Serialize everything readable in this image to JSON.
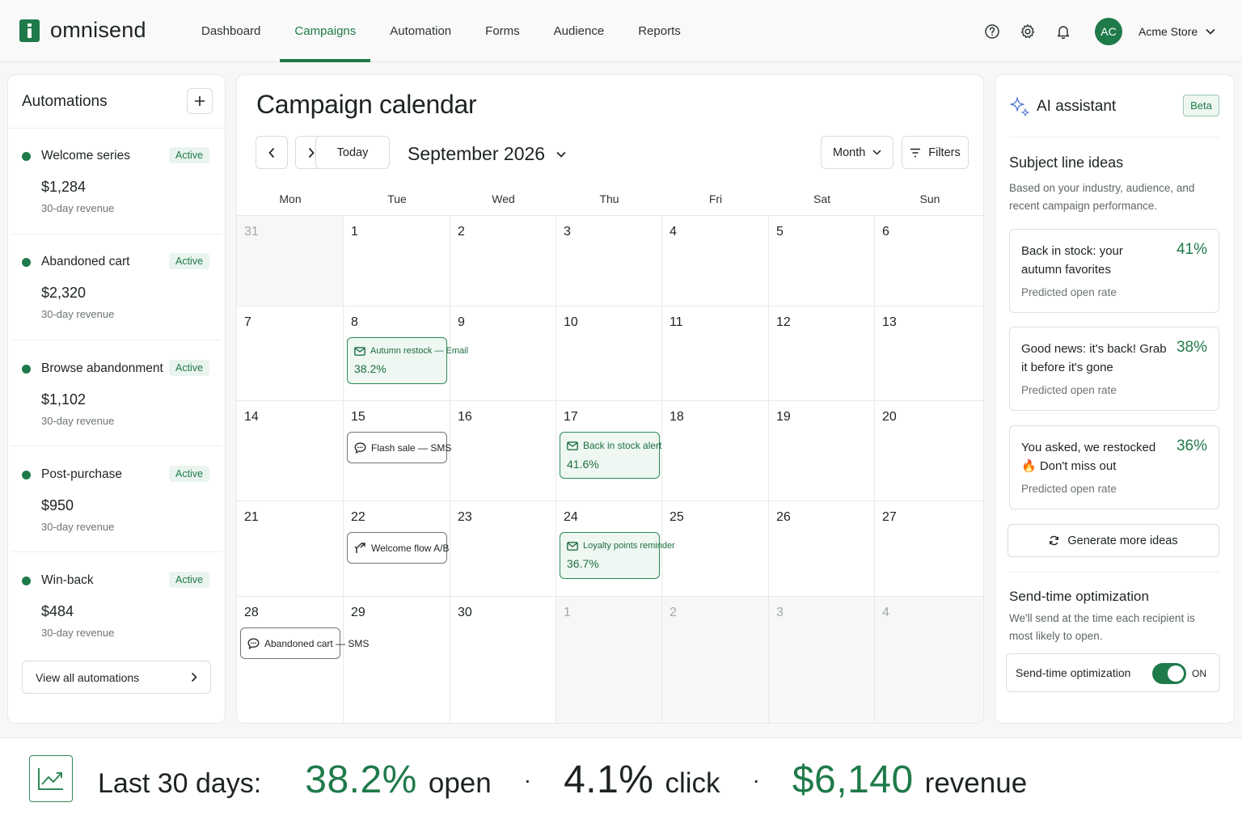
{
  "brand": {
    "name": "omnisend",
    "accent": "#1f7a4a"
  },
  "nav": {
    "items": [
      {
        "label": "Dashboard"
      },
      {
        "label": "Campaigns",
        "active": true
      },
      {
        "label": "Automation"
      },
      {
        "label": "Forms"
      },
      {
        "label": "Audience"
      },
      {
        "label": "Reports"
      }
    ]
  },
  "header": {
    "icons": [
      "help-icon",
      "gear-icon",
      "bell-icon"
    ],
    "avatar_initials": "AC",
    "store_name": "Acme Store"
  },
  "automations": {
    "title": "Automations",
    "items": [
      {
        "name": "Welcome series",
        "status": "Active",
        "revenue": "$1,284",
        "revenue_label": "30-day revenue"
      },
      {
        "name": "Abandoned cart",
        "status": "Active",
        "revenue": "$2,320",
        "revenue_label": "30-day revenue"
      },
      {
        "name": "Browse abandonment",
        "status": "Active",
        "revenue": "$1,102",
        "revenue_label": "30-day revenue"
      },
      {
        "name": "Post-purchase",
        "status": "Active",
        "revenue": "$950",
        "revenue_label": "30-day revenue"
      },
      {
        "name": "Win-back",
        "status": "Active",
        "revenue": "$484",
        "revenue_label": "30-day revenue"
      }
    ],
    "view_all": "View all automations"
  },
  "calendar": {
    "title": "Campaign calendar",
    "today_label": "Today",
    "month_label": "September 2026",
    "view_select": "Month",
    "filters_label": "Filters",
    "weekdays": [
      "Mon",
      "Tue",
      "Wed",
      "Thu",
      "Fri",
      "Sat",
      "Sun"
    ],
    "weeks": [
      [
        "31",
        "1",
        "2",
        "3",
        "4",
        "5",
        "6"
      ],
      [
        "7",
        "8",
        "9",
        "10",
        "11",
        "12",
        "13"
      ],
      [
        "14",
        "15",
        "16",
        "17",
        "18",
        "19",
        "20"
      ],
      [
        "21",
        "22",
        "23",
        "24",
        "25",
        "26",
        "27"
      ],
      [
        "28",
        "29",
        "30",
        "1",
        "2",
        "3",
        "4"
      ]
    ],
    "events": [
      {
        "title": "Autumn restock — Email",
        "rate": "38.2%",
        "icon": "mail-icon",
        "week": 1,
        "day": 1
      },
      {
        "title": "Flash sale — SMS",
        "icon": "chat-icon",
        "week": 2,
        "day": 1
      },
      {
        "title": "Back in stock alert",
        "rate": "41.6%",
        "icon": "mail-icon",
        "week": 2,
        "day": 3
      },
      {
        "title": "Welcome flow A/B",
        "icon": "split-icon",
        "week": 3,
        "day": 1
      },
      {
        "title": "Loyalty points reminder",
        "rate": "36.7%",
        "icon": "mail-icon",
        "week": 3,
        "day": 3
      },
      {
        "title": "Abandoned cart — SMS",
        "icon": "chat-icon",
        "week": 4,
        "day": 0
      }
    ]
  },
  "assistant": {
    "title": "AI assistant",
    "badge": "Beta",
    "subject_heading": "Subject line ideas",
    "subject_desc": "Based on your industry, audience, and recent campaign performance.",
    "ideas": [
      {
        "text": "Back in stock: your autumn favorites",
        "pct": "41%",
        "label": "Predicted open rate"
      },
      {
        "text": "Good news: it's back! Grab it before it's gone",
        "pct": "38%",
        "label": "Predicted open rate"
      },
      {
        "text": "You asked, we restocked 🔥 Don't miss out",
        "pct": "36%",
        "label": "Predicted open rate"
      }
    ],
    "generate_label": "Generate more ideas",
    "sto_heading": "Send-time optimization",
    "sto_desc": "We'll send at the time each recipient is most likely to open.",
    "sto_label": "Send-time optimization",
    "sto_state": "ON"
  },
  "summary": {
    "label": "Last 30 days:",
    "open_value": "38.2%",
    "open_unit": "open",
    "click_value": "4.1%",
    "click_unit": "click",
    "revenue_value": "$6,140",
    "revenue_unit": "revenue",
    "separator": "·"
  }
}
